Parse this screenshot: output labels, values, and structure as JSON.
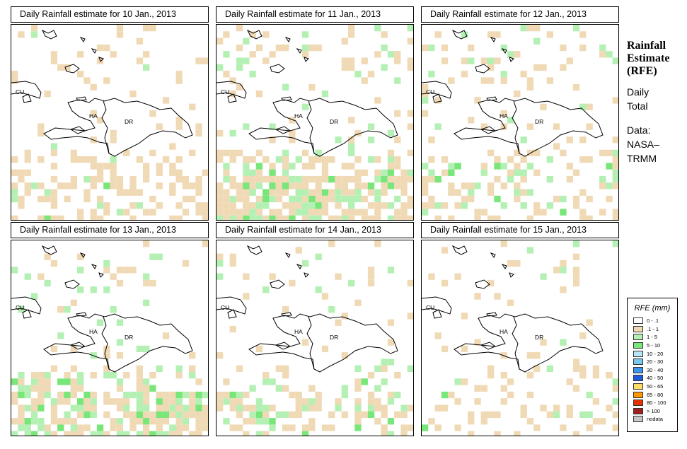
{
  "panels": [
    {
      "title": "Daily Rainfall estimate for  10 Jan., 2013"
    },
    {
      "title": "Daily Rainfall estimate for  11 Jan., 2013"
    },
    {
      "title": "Daily Rainfall estimate for  12 Jan., 2013"
    },
    {
      "title": "Daily Rainfall estimate for  13 Jan., 2013"
    },
    {
      "title": "Daily Rainfall estimate for  14 Jan., 2013"
    },
    {
      "title": "Daily Rainfall estimate for  15 Jan., 2013"
    }
  ],
  "map_labels": {
    "cuba": "CU",
    "haiti": "HA",
    "dominican_republic": "DR"
  },
  "side": {
    "title_line1": "Rainfall",
    "title_line2": "Estimate",
    "title_line3": "(RFE)",
    "daily_line1": "Daily",
    "daily_line2": "Total",
    "data_line1": "Data:",
    "data_line2": "NASA–",
    "data_line3": "TRMM"
  },
  "legend": {
    "title": "RFE (mm)",
    "items": [
      {
        "label": "0 - .1",
        "color": "#ffffff"
      },
      {
        "label": ".1 - 1",
        "color": "#f0d9b5"
      },
      {
        "label": "1 - 5",
        "color": "#b4f0b4"
      },
      {
        "label": "5 - 10",
        "color": "#78e678"
      },
      {
        "label": "10 - 20",
        "color": "#b4e6f5"
      },
      {
        "label": "20 - 30",
        "color": "#78c8f0"
      },
      {
        "label": "30 - 40",
        "color": "#3c96f0"
      },
      {
        "label": "40 - 50",
        "color": "#1e5adc"
      },
      {
        "label": "50 - 65",
        "color": "#ffdc64"
      },
      {
        "label": "65 - 80",
        "color": "#ff9600"
      },
      {
        "label": "80 - 100",
        "color": "#e63200"
      },
      {
        "label": "> 100",
        "color": "#a01e1e"
      },
      {
        "label": "nodata",
        "color": "#c8c8c8"
      }
    ]
  },
  "colors": {
    "light_rain": "#f0d9b5",
    "rain_1_5": "#b4f0b4",
    "rain_5_10": "#78e678",
    "rain_10_20": "#b4e6f5"
  }
}
